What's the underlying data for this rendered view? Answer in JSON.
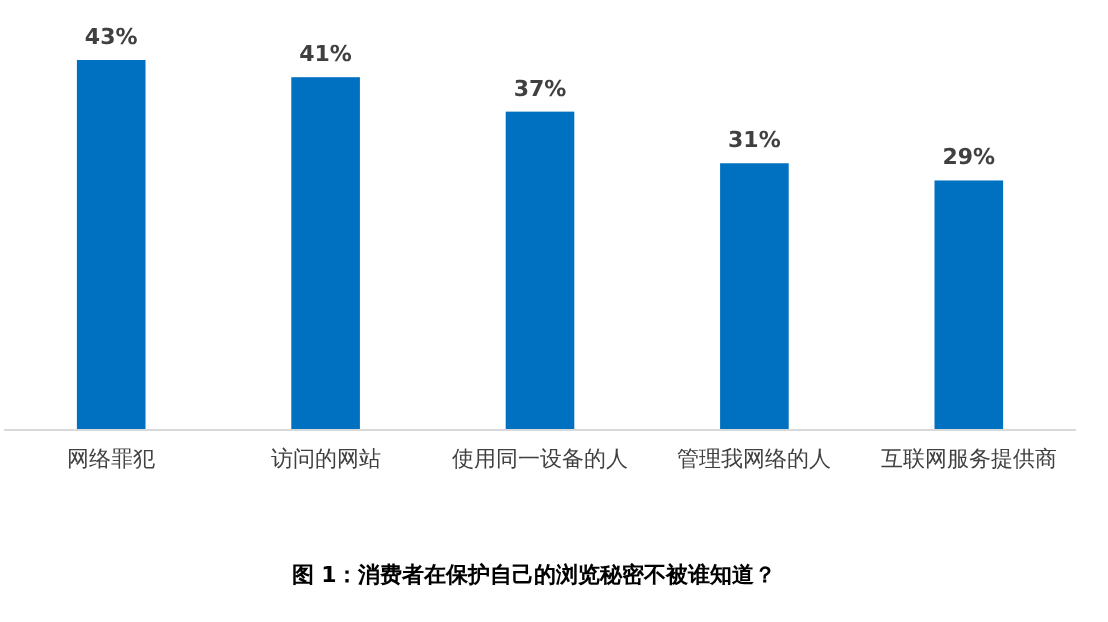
{
  "chart_data": {
    "type": "bar",
    "title": "图 1：消费者在保护自己的浏览秘密不被谁知道？",
    "categories": [
      "网络罪犯",
      "访问的网站",
      "使用同一设备的人",
      "管理我网络的人",
      "互联网服务提供商"
    ],
    "values": [
      43,
      41,
      37,
      31,
      29
    ],
    "color": "#0070c0",
    "data_labels": true,
    "value_labels": [
      "43%",
      "41%",
      "37%",
      "31%",
      "29%"
    ]
  }
}
